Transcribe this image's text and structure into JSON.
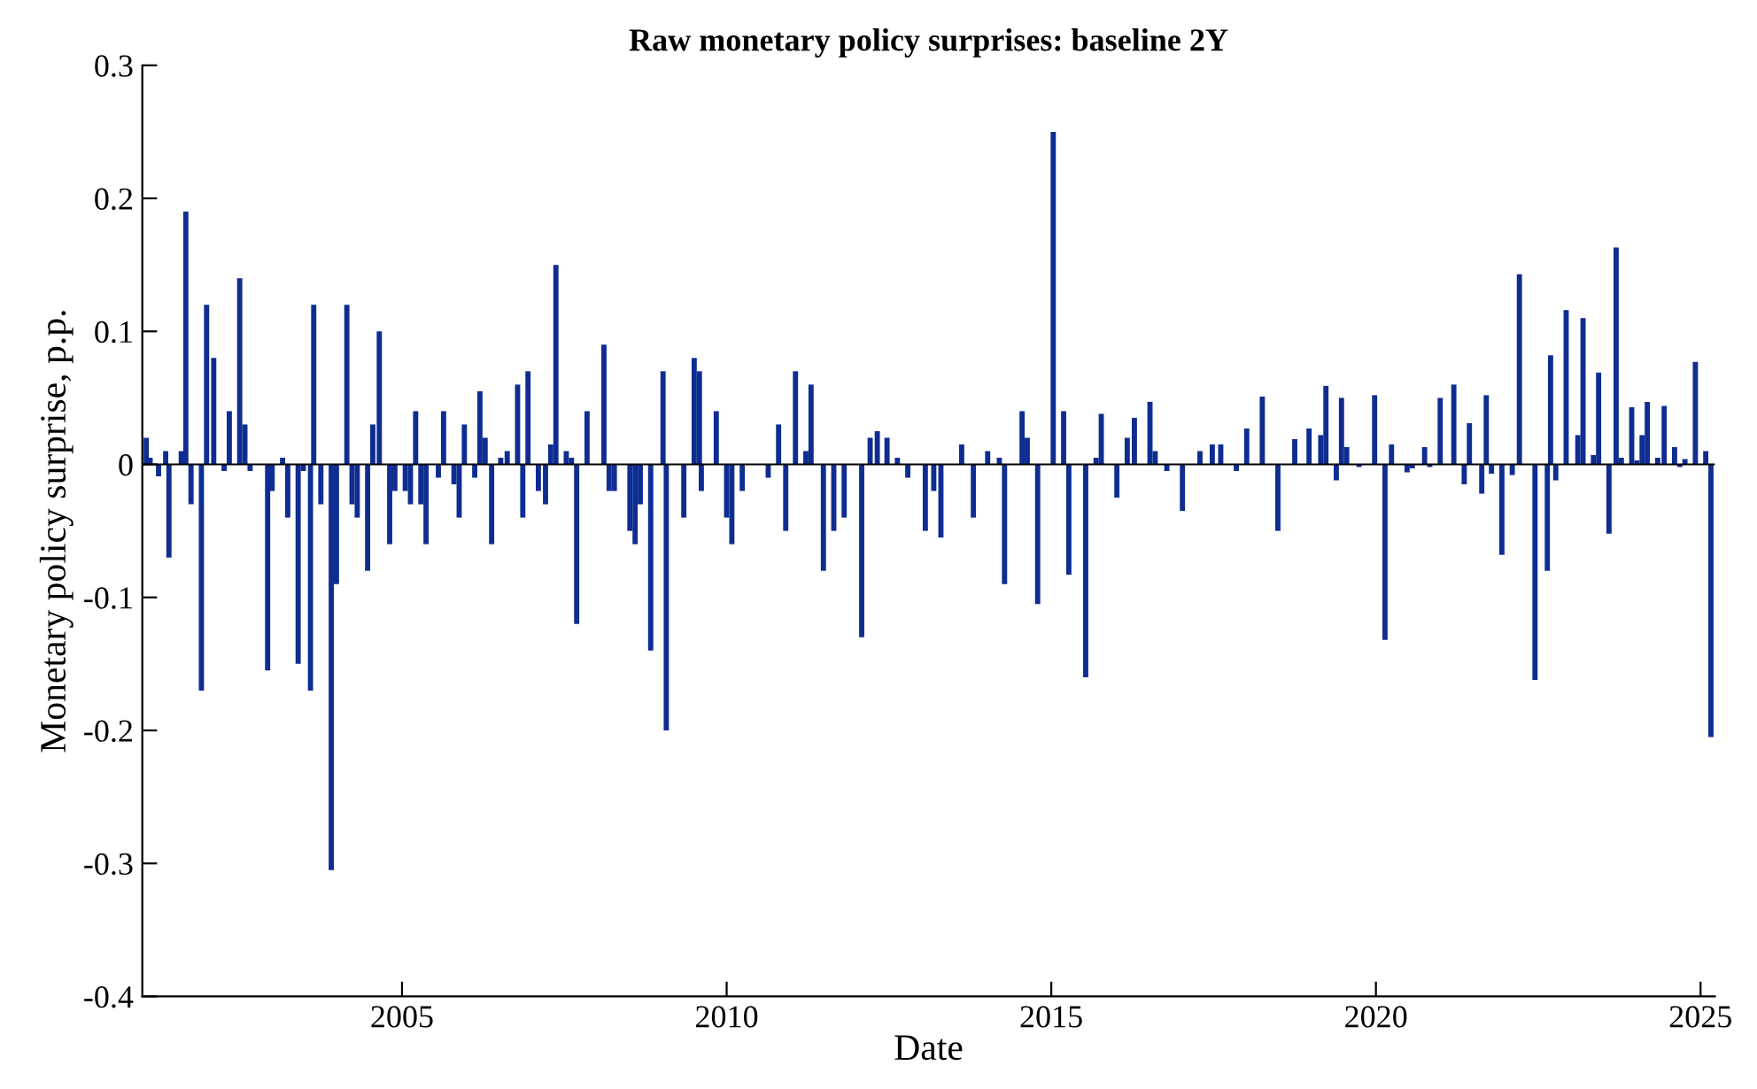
{
  "chart_data": {
    "type": "bar",
    "title": "Raw monetary policy surprises: baseline 2Y",
    "xlabel": "Date",
    "ylabel": "Monetary policy surprise, p.p.",
    "x": [
      2001.06,
      2001.12,
      2001.25,
      2001.36,
      2001.41,
      2001.6,
      2001.67,
      2001.75,
      2001.91,
      2001.99,
      2002.1,
      2002.26,
      2002.34,
      2002.5,
      2002.58,
      2002.66,
      2002.93,
      2003.0,
      2003.16,
      2003.24,
      2003.4,
      2003.48,
      2003.59,
      2003.64,
      2003.75,
      2003.91,
      2003.99,
      2004.15,
      2004.23,
      2004.31,
      2004.47,
      2004.55,
      2004.65,
      2004.81,
      2004.89,
      2005.05,
      2005.13,
      2005.21,
      2005.29,
      2005.37,
      2005.56,
      2005.64,
      2005.8,
      2005.88,
      2005.96,
      2006.12,
      2006.2,
      2006.28,
      2006.38,
      2006.52,
      2006.62,
      2006.78,
      2006.86,
      2006.94,
      2007.1,
      2007.21,
      2007.29,
      2007.37,
      2007.53,
      2007.61,
      2007.69,
      2007.85,
      2008.11,
      2008.19,
      2008.27,
      2008.51,
      2008.59,
      2008.67,
      2008.83,
      2009.02,
      2009.07,
      2009.34,
      2009.5,
      2009.58,
      2009.61,
      2009.84,
      2010.0,
      2010.08,
      2010.24,
      2010.64,
      2010.8,
      2010.91,
      2011.06,
      2011.22,
      2011.3,
      2011.49,
      2011.65,
      2011.81,
      2012.08,
      2012.21,
      2012.32,
      2012.47,
      2012.63,
      2012.79,
      2013.06,
      2013.19,
      2013.3,
      2013.62,
      2013.8,
      2014.02,
      2014.2,
      2014.28,
      2014.55,
      2014.63,
      2014.79,
      2015.03,
      2015.19,
      2015.27,
      2015.53,
      2015.69,
      2015.77,
      2016.01,
      2016.17,
      2016.28,
      2016.52,
      2016.6,
      2016.78,
      2017.02,
      2017.1,
      2017.29,
      2017.48,
      2017.61,
      2017.85,
      2018.01,
      2018.25,
      2018.49,
      2018.75,
      2018.97,
      2019.15,
      2019.23,
      2019.39,
      2019.47,
      2019.55,
      2019.74,
      2019.98,
      2020.14,
      2020.24,
      2020.48,
      2020.56,
      2020.75,
      2020.83,
      2020.99,
      2021.2,
      2021.36,
      2021.44,
      2021.63,
      2021.7,
      2021.78,
      2021.94,
      2022.1,
      2022.21,
      2022.45,
      2022.64,
      2022.69,
      2022.77,
      2022.93,
      2023.11,
      2023.19,
      2023.35,
      2023.43,
      2023.59,
      2023.7,
      2023.78,
      2023.94,
      2024.02,
      2024.1,
      2024.18,
      2024.34,
      2024.44,
      2024.6,
      2024.68,
      2024.76,
      2024.92,
      2025.08,
      2025.16
    ],
    "values": [
      0.02,
      0.005,
      -0.009,
      0.01,
      -0.07,
      0.01,
      0.19,
      -0.03,
      -0.17,
      0.12,
      0.08,
      -0.005,
      0.04,
      0.14,
      0.03,
      -0.005,
      -0.155,
      -0.02,
      0.005,
      -0.04,
      -0.15,
      -0.005,
      -0.17,
      0.12,
      -0.03,
      -0.305,
      -0.09,
      0.12,
      -0.03,
      -0.04,
      -0.08,
      0.03,
      0.1,
      -0.06,
      -0.02,
      -0.02,
      -0.03,
      0.04,
      -0.03,
      -0.06,
      -0.01,
      0.04,
      -0.015,
      -0.04,
      0.03,
      -0.01,
      0.055,
      0.02,
      -0.06,
      0.005,
      0.01,
      0.06,
      -0.04,
      0.07,
      -0.02,
      -0.03,
      0.015,
      0.15,
      0.01,
      0.005,
      -0.12,
      0.04,
      0.09,
      -0.02,
      -0.02,
      -0.05,
      -0.06,
      -0.03,
      -0.14,
      0.07,
      -0.2,
      -0.04,
      0.08,
      0.07,
      -0.02,
      0.04,
      -0.04,
      -0.06,
      -0.02,
      -0.01,
      0.03,
      -0.05,
      0.07,
      0.01,
      0.06,
      -0.08,
      -0.05,
      -0.04,
      -0.13,
      0.02,
      0.025,
      0.02,
      0.005,
      -0.01,
      -0.05,
      -0.02,
      -0.055,
      0.015,
      -0.04,
      0.01,
      0.005,
      -0.09,
      0.04,
      0.02,
      -0.105,
      0.25,
      0.04,
      -0.083,
      -0.16,
      0.005,
      0.038,
      -0.025,
      0.02,
      0.035,
      0.047,
      0.01,
      -0.005,
      -0.035,
      null,
      0.01,
      0.015,
      0.015,
      -0.005,
      0.027,
      0.051,
      -0.05,
      0.019,
      0.027,
      0.022,
      0.059,
      -0.012,
      0.05,
      0.013,
      -0.002,
      0.052,
      -0.132,
      0.015,
      -0.006,
      -0.003,
      0.013,
      -0.002,
      0.05,
      0.06,
      -0.015,
      0.031,
      -0.022,
      0.052,
      -0.007,
      -0.068,
      -0.008,
      0.143,
      -0.162,
      -0.08,
      0.082,
      -0.012,
      0.116,
      0.022,
      0.11,
      0.007,
      0.069,
      -0.052,
      0.163,
      0.005,
      0.043,
      0.003,
      0.022,
      0.047,
      0.005,
      0.044,
      0.013,
      -0.002,
      0.004,
      0.077,
      0.01,
      -0.205
    ],
    "color": "#0f2d91",
    "xlim": [
      2001.0,
      2025.22
    ],
    "xticks": [
      2005,
      2010,
      2015,
      2020,
      2025
    ],
    "ylim": [
      -0.4,
      0.3
    ],
    "yticks": [
      -0.4,
      -0.3,
      -0.2,
      -0.1,
      0,
      0.1,
      0.2,
      0.3
    ],
    "ref_lines": [
      {
        "axis": "y",
        "value": 0,
        "color": "#000000"
      }
    ],
    "grid": false,
    "legend": false
  }
}
